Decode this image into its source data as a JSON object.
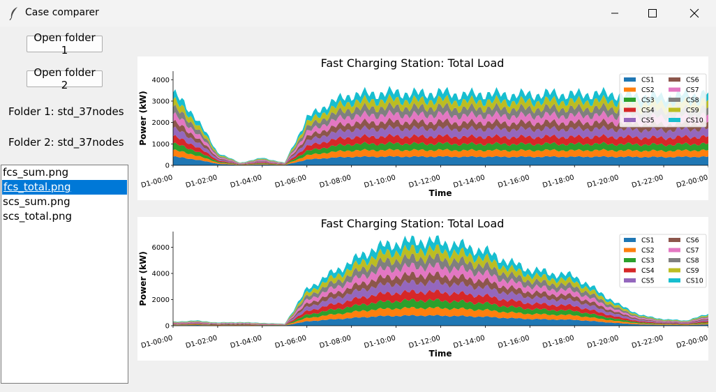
{
  "window": {
    "title": "Case comparer",
    "icons": {
      "app": "feather-icon",
      "minimize": "minimize-icon",
      "maximize": "maximize-icon",
      "close": "close-icon"
    }
  },
  "controls": {
    "open_folder_1": "Open folder 1",
    "open_folder_2": "Open folder 2",
    "folder1_label": "Folder 1: std_37nodes",
    "folder2_label": "Folder 2: std_37nodes"
  },
  "file_list": {
    "items": [
      "fcs_sum.png",
      "fcs_total.png",
      "scs_sum.png",
      "scs_total.png"
    ],
    "selected_index": 1
  },
  "colors": {
    "selection": "#0078d7",
    "series": [
      "#1f77b4",
      "#ff7f0e",
      "#2ca02c",
      "#d62728",
      "#9467bd",
      "#8c564b",
      "#e377c2",
      "#7f7f7f",
      "#bcbd22",
      "#17becf"
    ]
  },
  "chart_data": [
    {
      "type": "area",
      "stacked": true,
      "title": "Fast Charging Station: Total Load",
      "xlabel": "Time",
      "ylabel": "Power (kW)",
      "x_ticks": [
        "D1-00:00",
        "D1-02:00",
        "D1-04:00",
        "D1-06:00",
        "D1-08:00",
        "D1-10:00",
        "D1-12:00",
        "D1-14:00",
        "D1-16:00",
        "D1-18:00",
        "D1-20:00",
        "D1-22:00",
        "D2-00:00"
      ],
      "y_ticks": [
        0,
        1000,
        2000,
        3000,
        4000
      ],
      "ylim": [
        0,
        4400
      ],
      "legend": {
        "position": "top-right",
        "columns": 2
      },
      "x_hours": [
        0,
        1,
        2,
        3,
        4,
        5,
        6,
        7,
        8,
        9,
        10,
        11,
        12,
        13,
        14,
        15,
        16,
        17,
        18,
        19,
        20,
        21,
        22,
        23,
        24
      ],
      "total": [
        3400,
        2300,
        600,
        120,
        350,
        120,
        2200,
        2900,
        3300,
        3350,
        3400,
        3350,
        3400,
        3300,
        3350,
        3300,
        3300,
        3350,
        3300,
        3350,
        3300,
        3250,
        3200,
        3300,
        3350
      ],
      "series": [
        {
          "name": "CS1"
        },
        {
          "name": "CS2"
        },
        {
          "name": "CS3"
        },
        {
          "name": "CS4"
        },
        {
          "name": "CS5"
        },
        {
          "name": "CS6"
        },
        {
          "name": "CS7"
        },
        {
          "name": "CS8"
        },
        {
          "name": "CS9"
        },
        {
          "name": "CS10"
        }
      ]
    },
    {
      "type": "area",
      "stacked": true,
      "title": "Fast Charging Station: Total Load",
      "xlabel": "Time",
      "ylabel": "Power (kW)",
      "x_ticks": [
        "D1-00:00",
        "D1-02:00",
        "D1-04:00",
        "D1-06:00",
        "D1-08:00",
        "D1-10:00",
        "D1-12:00",
        "D1-14:00",
        "D1-16:00",
        "D1-18:00",
        "D1-20:00",
        "D1-22:00",
        "D2-00:00"
      ],
      "y_ticks": [
        0,
        2000,
        4000,
        6000
      ],
      "ylim": [
        0,
        7200
      ],
      "legend": {
        "position": "top-right",
        "columns": 2
      },
      "x_hours": [
        0,
        1,
        2,
        3,
        4,
        5,
        6,
        7,
        8,
        9,
        10,
        11,
        12,
        13,
        14,
        15,
        16,
        17,
        18,
        19,
        20,
        21,
        22,
        23,
        24
      ],
      "total": [
        300,
        400,
        250,
        280,
        220,
        150,
        2800,
        3900,
        4900,
        5900,
        6300,
        6500,
        6400,
        6100,
        5700,
        4900,
        4300,
        4000,
        3800,
        2700,
        1600,
        800,
        500,
        400,
        900
      ],
      "series": [
        {
          "name": "CS1"
        },
        {
          "name": "CS2"
        },
        {
          "name": "CS3"
        },
        {
          "name": "CS4"
        },
        {
          "name": "CS5"
        },
        {
          "name": "CS6"
        },
        {
          "name": "CS7"
        },
        {
          "name": "CS8"
        },
        {
          "name": "CS9"
        },
        {
          "name": "CS10"
        }
      ]
    }
  ]
}
